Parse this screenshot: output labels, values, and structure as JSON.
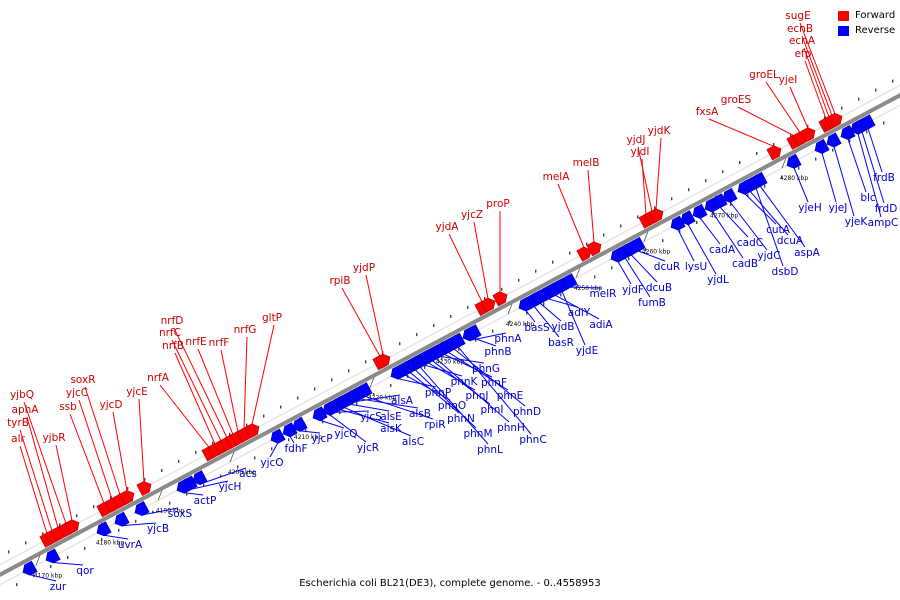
{
  "legend": {
    "forward": "Forward",
    "reverse": "Reverse",
    "forward_color": "#ff0000",
    "reverse_color": "#0000ff"
  },
  "caption": "Escherichia coli BL21(DE3), complete genome. - 0..4558953",
  "colors": {
    "forward": "#ff0000",
    "reverse": "#0000ff",
    "backbone": "#808080",
    "label_forward": "#cc0000",
    "label_reverse": "#0000cc"
  },
  "ticks": [
    "4170 kbp",
    "4180 kbp",
    "4190 kbp",
    "4200 kbp",
    "4210 kbp",
    "4220 kbp",
    "4230 kbp",
    "4240 kbp",
    "4250 kbp",
    "4260 kbp",
    "4270 kbp",
    "4280 kbp"
  ],
  "forward_genes": [
    "alr",
    "tyrB",
    "aphA",
    "yjbQ",
    "yjbR",
    "ssb",
    "yjcC",
    "soxR",
    "yjcD",
    "yjcE",
    "nrfA",
    "nrfB",
    "nrfC",
    "nrfD",
    "nrfE",
    "nrfF",
    "nrfG",
    "gltP",
    "rpiB",
    "yjdP",
    "yjdA",
    "yjcZ",
    "proP",
    "melA",
    "melB",
    "yjdI",
    "yjdJ",
    "yjdK",
    "fxsA",
    "groES",
    "groEL",
    "yjeI",
    "efp",
    "ecnA",
    "ecnB",
    "sugE"
  ],
  "reverse_genes": [
    "zur",
    "qor",
    "uvrA",
    "yjcB",
    "soxS",
    "actP",
    "yjcH",
    "acs",
    "yjcO",
    "fdhF",
    "yjcP",
    "yjcQ",
    "yjcR",
    "yjcS",
    "alsK",
    "alsC",
    "alsE",
    "alsA",
    "alsB",
    "rpiR",
    "phnP",
    "phnO",
    "phnN",
    "phnM",
    "phnL",
    "phnK",
    "phnJ",
    "phnI",
    "phnH",
    "phnG",
    "phnF",
    "phnE",
    "phnD",
    "phnC",
    "phnA",
    "phnB",
    "basS",
    "basR",
    "yjdB",
    "adiY",
    "adiA",
    "yjdE",
    "melR",
    "yjdF",
    "fumB",
    "dcuB",
    "dcuR",
    "lysU",
    "yjdL",
    "cadA",
    "cadB",
    "cadC",
    "yjdC",
    "cutA",
    "dcuA",
    "dsbD",
    "aspA",
    "yjeH",
    "yjeJ",
    "yjeK",
    "blc",
    "ampC",
    "frdD",
    "frdB"
  ]
}
